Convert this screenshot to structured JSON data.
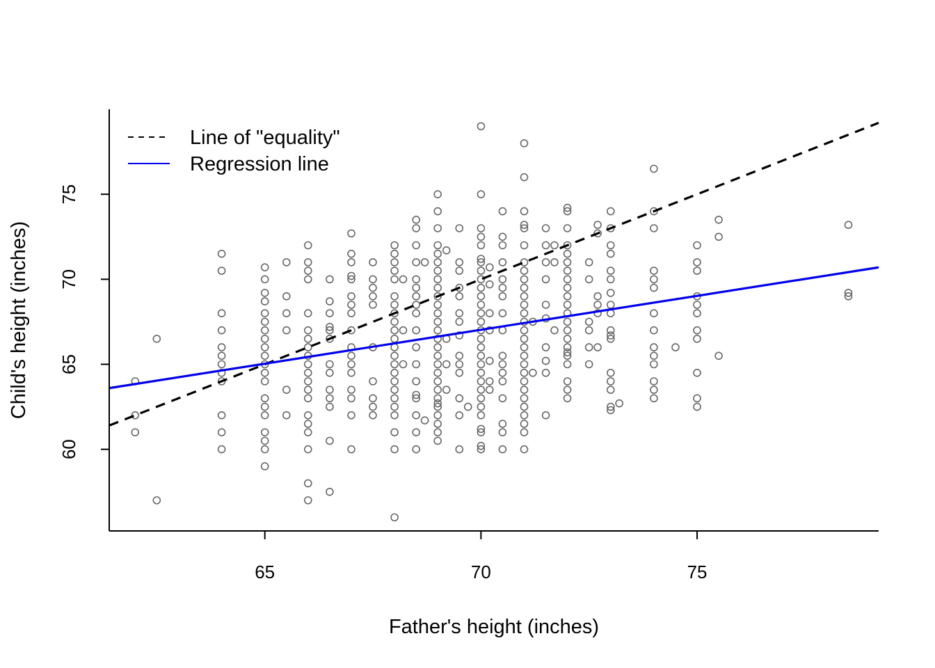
{
  "chart_data": {
    "type": "scatter",
    "title": "",
    "xlabel": "Father's height (inches)",
    "ylabel": "Child's height (inches)",
    "xlim": [
      61.4,
      79.2
    ],
    "ylim": [
      55.2,
      80
    ],
    "xticks": [
      {
        "value": 65,
        "label": "65"
      },
      {
        "value": 70,
        "label": "70"
      },
      {
        "value": 75,
        "label": "75"
      }
    ],
    "yticks": [
      {
        "value": 60,
        "label": "60"
      },
      {
        "value": 65,
        "label": "65"
      },
      {
        "value": 70,
        "label": "70"
      },
      {
        "value": 75,
        "label": "75"
      }
    ],
    "grid": false,
    "legend": {
      "position": "top-left",
      "entries": [
        {
          "label": "Line of \"equality\"",
          "style": "dashed",
          "color": "#000000"
        },
        {
          "label": "Regression line",
          "style": "solid",
          "color": "#0000EE"
        }
      ]
    },
    "colors": {
      "points": "#666666",
      "equality_line": "#000000",
      "regression_line": "#0000EE"
    },
    "lines": [
      {
        "name": "equality",
        "x": [
          61.4,
          79.2
        ],
        "y": [
          61.4,
          79.2
        ]
      },
      {
        "name": "regression",
        "x": [
          61.4,
          79.2
        ],
        "y": [
          63.6,
          70.7
        ]
      }
    ],
    "points": [
      [
        62,
        64
      ],
      [
        62,
        62
      ],
      [
        62,
        61
      ],
      [
        62.5,
        66.5
      ],
      [
        62.5,
        57
      ],
      [
        64,
        71.5
      ],
      [
        64,
        70.5
      ],
      [
        64,
        68
      ],
      [
        64,
        67
      ],
      [
        64,
        66
      ],
      [
        64,
        65.5
      ],
      [
        64,
        65
      ],
      [
        64,
        64.5
      ],
      [
        64,
        64
      ],
      [
        64,
        62
      ],
      [
        64,
        61
      ],
      [
        64,
        60
      ],
      [
        65,
        70.7
      ],
      [
        65,
        70
      ],
      [
        65,
        69.2
      ],
      [
        65,
        68.7
      ],
      [
        65,
        68
      ],
      [
        65,
        67.5
      ],
      [
        65,
        67
      ],
      [
        65,
        66.5
      ],
      [
        65,
        66
      ],
      [
        65,
        65.5
      ],
      [
        65,
        65
      ],
      [
        65,
        64.5
      ],
      [
        65,
        64
      ],
      [
        65,
        63
      ],
      [
        65,
        62.5
      ],
      [
        65,
        62
      ],
      [
        65,
        61
      ],
      [
        65,
        60.5
      ],
      [
        65,
        60
      ],
      [
        65,
        59
      ],
      [
        65.5,
        71
      ],
      [
        65.5,
        69
      ],
      [
        65.5,
        68
      ],
      [
        65.5,
        67
      ],
      [
        65.5,
        63.5
      ],
      [
        65.5,
        62
      ],
      [
        66,
        72
      ],
      [
        66,
        71
      ],
      [
        66,
        70.5
      ],
      [
        66,
        70
      ],
      [
        66,
        68
      ],
      [
        66,
        67
      ],
      [
        66,
        66.5
      ],
      [
        66,
        66
      ],
      [
        66,
        65.5
      ],
      [
        66,
        65
      ],
      [
        66,
        64.5
      ],
      [
        66,
        64
      ],
      [
        66,
        63.5
      ],
      [
        66,
        63
      ],
      [
        66,
        62
      ],
      [
        66,
        61.5
      ],
      [
        66,
        61
      ],
      [
        66,
        60
      ],
      [
        66,
        58
      ],
      [
        66,
        57
      ],
      [
        66.5,
        70
      ],
      [
        66.5,
        68.7
      ],
      [
        66.5,
        68
      ],
      [
        66.5,
        67.2
      ],
      [
        66.5,
        67
      ],
      [
        66.5,
        66.5
      ],
      [
        66.5,
        65
      ],
      [
        66.5,
        64.5
      ],
      [
        66.5,
        63.5
      ],
      [
        66.5,
        63
      ],
      [
        66.5,
        62.5
      ],
      [
        66.5,
        60.5
      ],
      [
        66.5,
        57.5
      ],
      [
        67,
        72.7
      ],
      [
        67,
        71.5
      ],
      [
        67,
        71
      ],
      [
        67,
        70.2
      ],
      [
        67,
        70
      ],
      [
        67,
        69
      ],
      [
        67,
        68.5
      ],
      [
        67,
        68
      ],
      [
        67,
        67
      ],
      [
        67,
        66
      ],
      [
        67,
        65.5
      ],
      [
        67,
        65
      ],
      [
        67,
        64.5
      ],
      [
        67,
        63.5
      ],
      [
        67,
        63
      ],
      [
        67,
        62
      ],
      [
        67,
        60
      ],
      [
        67.5,
        71
      ],
      [
        67.5,
        70
      ],
      [
        67.5,
        69.5
      ],
      [
        67.5,
        69
      ],
      [
        67.5,
        68.5
      ],
      [
        67.5,
        66
      ],
      [
        67.5,
        64
      ],
      [
        67.5,
        63
      ],
      [
        67.5,
        62.5
      ],
      [
        67.5,
        62
      ],
      [
        68,
        72
      ],
      [
        68,
        71.5
      ],
      [
        68,
        71
      ],
      [
        68,
        70.5
      ],
      [
        68,
        70
      ],
      [
        68,
        69
      ],
      [
        68,
        68.5
      ],
      [
        68,
        68
      ],
      [
        68,
        67.5
      ],
      [
        68,
        67
      ],
      [
        68,
        66.5
      ],
      [
        68,
        66
      ],
      [
        68,
        65.5
      ],
      [
        68,
        65
      ],
      [
        68,
        64.5
      ],
      [
        68,
        64
      ],
      [
        68,
        63.5
      ],
      [
        68,
        63
      ],
      [
        68,
        62.5
      ],
      [
        68,
        62
      ],
      [
        68,
        61
      ],
      [
        68,
        60
      ],
      [
        68,
        56
      ],
      [
        68.2,
        70
      ],
      [
        68.2,
        67
      ],
      [
        68.2,
        65
      ],
      [
        68.5,
        73.5
      ],
      [
        68.5,
        73
      ],
      [
        68.5,
        72
      ],
      [
        68.5,
        71
      ],
      [
        68.5,
        70
      ],
      [
        68.5,
        69.5
      ],
      [
        68.5,
        69
      ],
      [
        68.5,
        68.5
      ],
      [
        68.5,
        68
      ],
      [
        68.5,
        67
      ],
      [
        68.5,
        66
      ],
      [
        68.5,
        65
      ],
      [
        68.5,
        64
      ],
      [
        68.5,
        63.2
      ],
      [
        68.5,
        63
      ],
      [
        68.5,
        62
      ],
      [
        68.5,
        61
      ],
      [
        68.5,
        60
      ],
      [
        68.7,
        71
      ],
      [
        68.7,
        61.7
      ],
      [
        69,
        75
      ],
      [
        69,
        74
      ],
      [
        69,
        73
      ],
      [
        69,
        72
      ],
      [
        69,
        71.5
      ],
      [
        69,
        71
      ],
      [
        69,
        70.5
      ],
      [
        69,
        70
      ],
      [
        69,
        69.5
      ],
      [
        69,
        69
      ],
      [
        69,
        68.5
      ],
      [
        69,
        68
      ],
      [
        69,
        67.5
      ],
      [
        69,
        67
      ],
      [
        69,
        66.5
      ],
      [
        69,
        66
      ],
      [
        69,
        65.5
      ],
      [
        69,
        65
      ],
      [
        69,
        64.5
      ],
      [
        69,
        64
      ],
      [
        69,
        63.5
      ],
      [
        69,
        63
      ],
      [
        69,
        62.7
      ],
      [
        69,
        62.5
      ],
      [
        69,
        62
      ],
      [
        69,
        61.5
      ],
      [
        69,
        61
      ],
      [
        69,
        60.5
      ],
      [
        69.2,
        71.7
      ],
      [
        69.2,
        66.5
      ],
      [
        69.2,
        65
      ],
      [
        69.2,
        63.5
      ],
      [
        69.5,
        73
      ],
      [
        69.5,
        71
      ],
      [
        69.5,
        70.5
      ],
      [
        69.5,
        69.5
      ],
      [
        69.5,
        69
      ],
      [
        69.5,
        68
      ],
      [
        69.5,
        67.5
      ],
      [
        69.5,
        66.7
      ],
      [
        69.5,
        65.5
      ],
      [
        69.5,
        65
      ],
      [
        69.5,
        64.5
      ],
      [
        69.5,
        63
      ],
      [
        69.5,
        62
      ],
      [
        69.5,
        60
      ],
      [
        69.7,
        62.5
      ],
      [
        70,
        79
      ],
      [
        70,
        75
      ],
      [
        70,
        73
      ],
      [
        70,
        72.5
      ],
      [
        70,
        72
      ],
      [
        70,
        71.2
      ],
      [
        70,
        71
      ],
      [
        70,
        70.5
      ],
      [
        70,
        70
      ],
      [
        70,
        69.5
      ],
      [
        70,
        69
      ],
      [
        70,
        68.5
      ],
      [
        70,
        68
      ],
      [
        70,
        67.5
      ],
      [
        70,
        67
      ],
      [
        70,
        66.5
      ],
      [
        70,
        66
      ],
      [
        70,
        65.5
      ],
      [
        70,
        65
      ],
      [
        70,
        64.5
      ],
      [
        70,
        64
      ],
      [
        70,
        63.5
      ],
      [
        70,
        63
      ],
      [
        70,
        62.5
      ],
      [
        70,
        62
      ],
      [
        70,
        61.2
      ],
      [
        70,
        61
      ],
      [
        70,
        60.2
      ],
      [
        70,
        60
      ],
      [
        70.2,
        70.7
      ],
      [
        70.2,
        69.7
      ],
      [
        70.2,
        68
      ],
      [
        70.2,
        67
      ],
      [
        70.2,
        65.2
      ],
      [
        70.2,
        64
      ],
      [
        70.2,
        63.5
      ],
      [
        70.5,
        74
      ],
      [
        70.5,
        72.5
      ],
      [
        70.5,
        72
      ],
      [
        70.5,
        71
      ],
      [
        70.5,
        70
      ],
      [
        70.5,
        69.5
      ],
      [
        70.5,
        69
      ],
      [
        70.5,
        68
      ],
      [
        70.5,
        67
      ],
      [
        70.5,
        65.5
      ],
      [
        70.5,
        65
      ],
      [
        70.5,
        64.5
      ],
      [
        70.5,
        64
      ],
      [
        70.5,
        63
      ],
      [
        70.5,
        61.5
      ],
      [
        70.5,
        61
      ],
      [
        70.5,
        60
      ],
      [
        71,
        78
      ],
      [
        71,
        76
      ],
      [
        71,
        74
      ],
      [
        71,
        73.2
      ],
      [
        71,
        73
      ],
      [
        71,
        72
      ],
      [
        71,
        71
      ],
      [
        71,
        70.5
      ],
      [
        71,
        70
      ],
      [
        71,
        69.5
      ],
      [
        71,
        69
      ],
      [
        71,
        68.5
      ],
      [
        71,
        68
      ],
      [
        71,
        67.5
      ],
      [
        71,
        67
      ],
      [
        71,
        66.5
      ],
      [
        71,
        66
      ],
      [
        71,
        65.5
      ],
      [
        71,
        65
      ],
      [
        71,
        64.5
      ],
      [
        71,
        64
      ],
      [
        71,
        63.5
      ],
      [
        71,
        63
      ],
      [
        71,
        62.5
      ],
      [
        71,
        62
      ],
      [
        71,
        61.5
      ],
      [
        71,
        61
      ],
      [
        71,
        60
      ],
      [
        71.2,
        67.5
      ],
      [
        71.2,
        64.5
      ],
      [
        71.5,
        73
      ],
      [
        71.5,
        72
      ],
      [
        71.5,
        71
      ],
      [
        71.5,
        70
      ],
      [
        71.5,
        68.5
      ],
      [
        71.5,
        67.7
      ],
      [
        71.5,
        66
      ],
      [
        71.5,
        65.2
      ],
      [
        71.5,
        64.5
      ],
      [
        71.5,
        62
      ],
      [
        71.7,
        72
      ],
      [
        71.7,
        71
      ],
      [
        71.7,
        67
      ],
      [
        72,
        74.2
      ],
      [
        72,
        74
      ],
      [
        72,
        73
      ],
      [
        72,
        72
      ],
      [
        72,
        71.5
      ],
      [
        72,
        71
      ],
      [
        72,
        70.5
      ],
      [
        72,
        70
      ],
      [
        72,
        69.5
      ],
      [
        72,
        69
      ],
      [
        72,
        68.5
      ],
      [
        72,
        68
      ],
      [
        72,
        67.5
      ],
      [
        72,
        67
      ],
      [
        72,
        66.5
      ],
      [
        72,
        66
      ],
      [
        72,
        65.7
      ],
      [
        72,
        65.5
      ],
      [
        72,
        65
      ],
      [
        72,
        64
      ],
      [
        72,
        63.5
      ],
      [
        72,
        63
      ],
      [
        72.5,
        71
      ],
      [
        72.5,
        70
      ],
      [
        72.5,
        67.5
      ],
      [
        72.5,
        67
      ],
      [
        72.5,
        66
      ],
      [
        72.5,
        65
      ],
      [
        72.7,
        73.2
      ],
      [
        72.7,
        72.7
      ],
      [
        72.7,
        69
      ],
      [
        72.7,
        68.5
      ],
      [
        72.7,
        68
      ],
      [
        72.7,
        66
      ],
      [
        73,
        74
      ],
      [
        73,
        73
      ],
      [
        73,
        72
      ],
      [
        73,
        71.5
      ],
      [
        73,
        70.5
      ],
      [
        73,
        70
      ],
      [
        73,
        69.2
      ],
      [
        73,
        68.5
      ],
      [
        73,
        68
      ],
      [
        73,
        67
      ],
      [
        73,
        66.7
      ],
      [
        73,
        66.5
      ],
      [
        73,
        64.5
      ],
      [
        73,
        64
      ],
      [
        73,
        63.5
      ],
      [
        73,
        62.5
      ],
      [
        73,
        62.3
      ],
      [
        73.2,
        62.7
      ],
      [
        74,
        76.5
      ],
      [
        74,
        74
      ],
      [
        74,
        73
      ],
      [
        74,
        70.5
      ],
      [
        74,
        70
      ],
      [
        74,
        69.5
      ],
      [
        74,
        68
      ],
      [
        74,
        67
      ],
      [
        74,
        66
      ],
      [
        74,
        65.5
      ],
      [
        74,
        65
      ],
      [
        74,
        64
      ],
      [
        74,
        63.5
      ],
      [
        74,
        63
      ],
      [
        74.5,
        66
      ],
      [
        75,
        72
      ],
      [
        75,
        71
      ],
      [
        75,
        70.5
      ],
      [
        75,
        69
      ],
      [
        75,
        68.5
      ],
      [
        75,
        68
      ],
      [
        75,
        67
      ],
      [
        75,
        66.5
      ],
      [
        75,
        64.5
      ],
      [
        75,
        63
      ],
      [
        75,
        62.5
      ],
      [
        75.5,
        73.5
      ],
      [
        75.5,
        72.5
      ],
      [
        75.5,
        65.5
      ],
      [
        78.5,
        73.2
      ],
      [
        78.5,
        69.2
      ],
      [
        78.5,
        69
      ]
    ]
  }
}
